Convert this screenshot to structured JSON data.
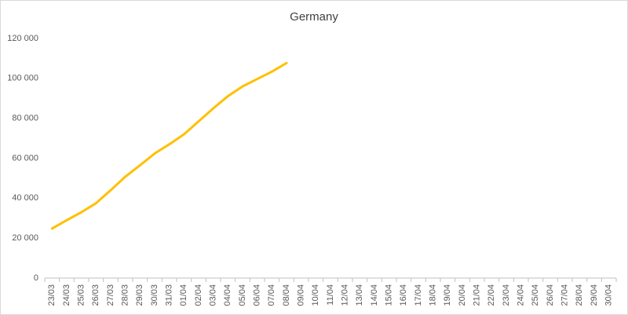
{
  "chart_data": {
    "type": "line",
    "title": "Germany",
    "categories": [
      "23/03",
      "24/03",
      "25/03",
      "26/03",
      "27/03",
      "28/03",
      "29/03",
      "30/03",
      "31/03",
      "01/04",
      "02/04",
      "03/04",
      "04/04",
      "05/04",
      "06/04",
      "07/04",
      "08/04",
      "09/04",
      "10/04",
      "11/04",
      "12/04",
      "13/04",
      "14/04",
      "15/04",
      "16/04",
      "17/04",
      "18/04",
      "19/04",
      "20/04",
      "21/04",
      "22/04",
      "23/04",
      "24/04",
      "25/04",
      "26/04",
      "27/04",
      "28/04",
      "29/04",
      "30/04"
    ],
    "series": [
      {
        "name": "Germany",
        "color": "#ffc000",
        "values": [
          24800,
          29000,
          33000,
          37500,
          44000,
          50800,
          56500,
          62400,
          67000,
          72000,
          78500,
          85000,
          91100,
          96000,
          99700,
          103400,
          107700,
          null,
          null,
          null,
          null,
          null,
          null,
          null,
          null,
          null,
          null,
          null,
          null,
          null,
          null,
          null,
          null,
          null,
          null,
          null,
          null,
          null,
          null
        ]
      }
    ],
    "ylim": [
      0,
      120000
    ],
    "yticks": [
      0,
      {
        "value": 20000,
        "label": "20 000"
      },
      {
        "value": 40000,
        "label": "40 000"
      },
      {
        "value": 60000,
        "label": "60 000"
      },
      {
        "value": 80000,
        "label": "80 000"
      },
      {
        "value": 100000,
        "label": "100 000"
      },
      {
        "value": 120000,
        "label": "120 000"
      }
    ],
    "grid": false
  }
}
